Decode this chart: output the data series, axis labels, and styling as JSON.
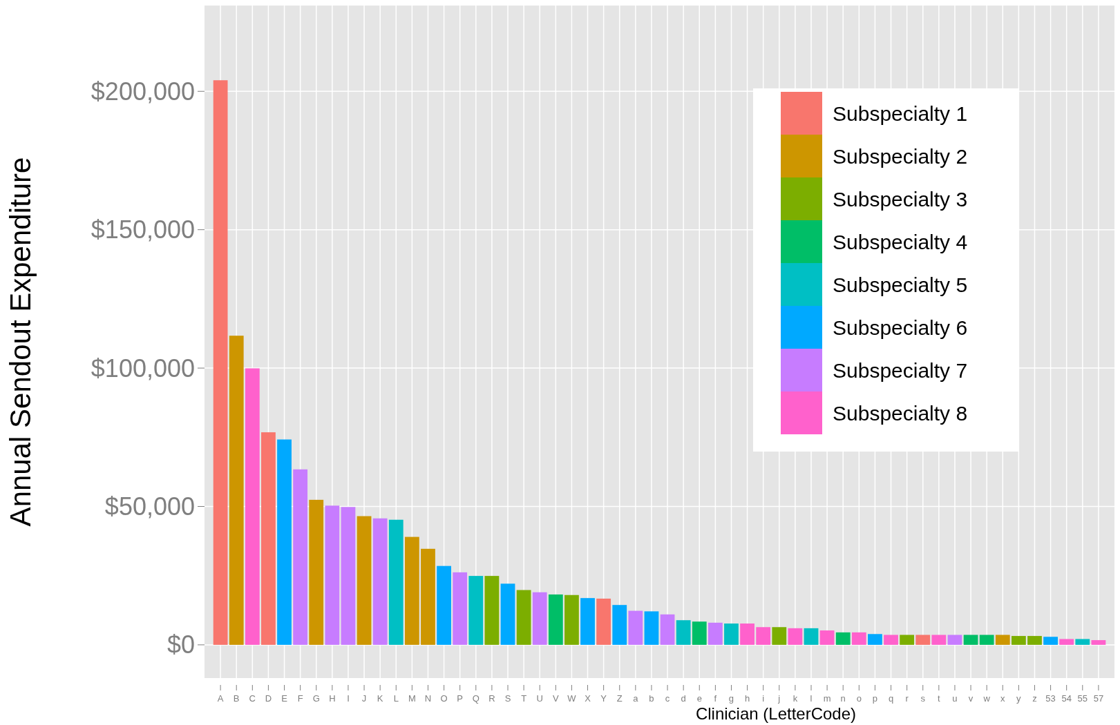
{
  "chart_data": {
    "type": "bar",
    "xlabel": "Clinician (LetterCode)",
    "ylabel": "Annual Sendout Expenditure",
    "categories": [
      "A",
      "B",
      "C",
      "D",
      "E",
      "F",
      "G",
      "H",
      "I",
      "J",
      "K",
      "L",
      "M",
      "N",
      "O",
      "P",
      "Q",
      "R",
      "S",
      "T",
      "U",
      "V",
      "W",
      "X",
      "Y",
      "Z",
      "a",
      "b",
      "c",
      "d",
      "e",
      "f",
      "g",
      "h",
      "i",
      "j",
      "k",
      "l",
      "m",
      "n",
      "o",
      "p",
      "q",
      "r",
      "s",
      "t",
      "u",
      "v",
      "w",
      "x",
      "y",
      "z",
      "53",
      "54",
      "55",
      "57"
    ],
    "ylim": [
      -12000,
      231000
    ],
    "yticks": [
      {
        "value": 0,
        "label": "$0"
      },
      {
        "value": 50000,
        "label": "$50,000"
      },
      {
        "value": 100000,
        "label": "$100,000"
      },
      {
        "value": 150000,
        "label": "$150,000"
      },
      {
        "value": 200000,
        "label": "$200,000"
      }
    ],
    "grid": true,
    "legend": "top right",
    "series": [
      {
        "name": "Subspecialty 1",
        "color": "#f8766d",
        "values": [
          204000,
          null,
          null,
          76800,
          null,
          null,
          null,
          null,
          null,
          null,
          null,
          null,
          null,
          null,
          null,
          null,
          null,
          null,
          null,
          null,
          null,
          null,
          null,
          null,
          16700,
          null,
          null,
          null,
          null,
          null,
          null,
          null,
          null,
          null,
          null,
          null,
          null,
          null,
          null,
          null,
          null,
          null,
          null,
          null,
          3600,
          null,
          null,
          null,
          null,
          null,
          null,
          null,
          null,
          null,
          null,
          null
        ]
      },
      {
        "name": "Subspecialty 2",
        "color": "#cd9600",
        "values": [
          null,
          111700,
          null,
          null,
          null,
          null,
          52400,
          null,
          null,
          46500,
          null,
          null,
          39000,
          34700,
          null,
          null,
          null,
          null,
          null,
          null,
          null,
          null,
          null,
          null,
          null,
          null,
          null,
          null,
          null,
          null,
          null,
          null,
          null,
          null,
          null,
          null,
          null,
          null,
          null,
          null,
          null,
          null,
          null,
          null,
          null,
          null,
          null,
          null,
          null,
          3600,
          null,
          null,
          null,
          null,
          null,
          null
        ]
      },
      {
        "name": "Subspecialty 3",
        "color": "#7cae00",
        "values": [
          null,
          null,
          null,
          null,
          null,
          null,
          null,
          null,
          null,
          null,
          null,
          null,
          null,
          null,
          null,
          null,
          null,
          24900,
          null,
          19800,
          null,
          null,
          18000,
          null,
          null,
          null,
          null,
          null,
          null,
          null,
          null,
          null,
          null,
          null,
          null,
          6400,
          null,
          null,
          null,
          null,
          null,
          null,
          null,
          3600,
          null,
          null,
          null,
          null,
          null,
          null,
          3200,
          3200,
          null,
          null,
          null,
          null
        ]
      },
      {
        "name": "Subspecialty 4",
        "color": "#00be67",
        "values": [
          null,
          null,
          null,
          null,
          null,
          null,
          null,
          null,
          null,
          null,
          null,
          null,
          null,
          null,
          null,
          null,
          null,
          null,
          null,
          null,
          null,
          18200,
          null,
          null,
          null,
          null,
          null,
          null,
          null,
          null,
          8400,
          null,
          null,
          null,
          null,
          null,
          null,
          null,
          null,
          4500,
          null,
          null,
          null,
          null,
          null,
          null,
          null,
          3600,
          3600,
          null,
          null,
          null,
          null,
          null,
          null,
          null
        ]
      },
      {
        "name": "Subspecialty 5",
        "color": "#00bfc4",
        "values": [
          null,
          null,
          null,
          null,
          null,
          null,
          null,
          null,
          null,
          null,
          null,
          45200,
          null,
          null,
          null,
          null,
          24900,
          null,
          null,
          null,
          null,
          null,
          null,
          null,
          null,
          null,
          null,
          null,
          null,
          8900,
          null,
          null,
          7700,
          null,
          null,
          null,
          null,
          6000,
          null,
          null,
          null,
          null,
          null,
          null,
          null,
          null,
          null,
          null,
          null,
          null,
          null,
          null,
          null,
          null,
          2100,
          null
        ]
      },
      {
        "name": "Subspecialty 6",
        "color": "#00a9ff",
        "values": [
          null,
          null,
          null,
          null,
          74200,
          null,
          null,
          null,
          null,
          null,
          null,
          null,
          null,
          null,
          28500,
          null,
          null,
          null,
          22100,
          null,
          null,
          null,
          null,
          16900,
          null,
          14400,
          null,
          12100,
          null,
          null,
          null,
          null,
          null,
          null,
          null,
          null,
          null,
          null,
          null,
          null,
          null,
          3900,
          null,
          null,
          null,
          null,
          null,
          null,
          null,
          null,
          null,
          null,
          2900,
          null,
          null,
          null
        ]
      },
      {
        "name": "Subspecialty 7",
        "color": "#c77cff",
        "values": [
          null,
          null,
          null,
          null,
          null,
          63400,
          null,
          50300,
          49800,
          null,
          45700,
          null,
          null,
          null,
          null,
          26200,
          null,
          null,
          null,
          null,
          19000,
          null,
          null,
          null,
          null,
          null,
          12300,
          null,
          11000,
          null,
          null,
          8000,
          null,
          null,
          null,
          null,
          null,
          null,
          null,
          null,
          null,
          null,
          null,
          null,
          null,
          null,
          3600,
          null,
          null,
          null,
          null,
          null,
          null,
          null,
          null,
          null
        ]
      },
      {
        "name": "Subspecialty 8",
        "color": "#ff61cc",
        "values": [
          null,
          null,
          99900,
          null,
          null,
          null,
          null,
          null,
          null,
          null,
          null,
          null,
          null,
          null,
          null,
          null,
          null,
          null,
          null,
          null,
          null,
          null,
          null,
          null,
          null,
          null,
          null,
          null,
          null,
          null,
          null,
          null,
          null,
          7700,
          6400,
          null,
          6000,
          null,
          5200,
          null,
          4500,
          null,
          3600,
          null,
          null,
          3600,
          null,
          null,
          null,
          null,
          null,
          null,
          null,
          2100,
          null,
          1700
        ]
      }
    ]
  }
}
